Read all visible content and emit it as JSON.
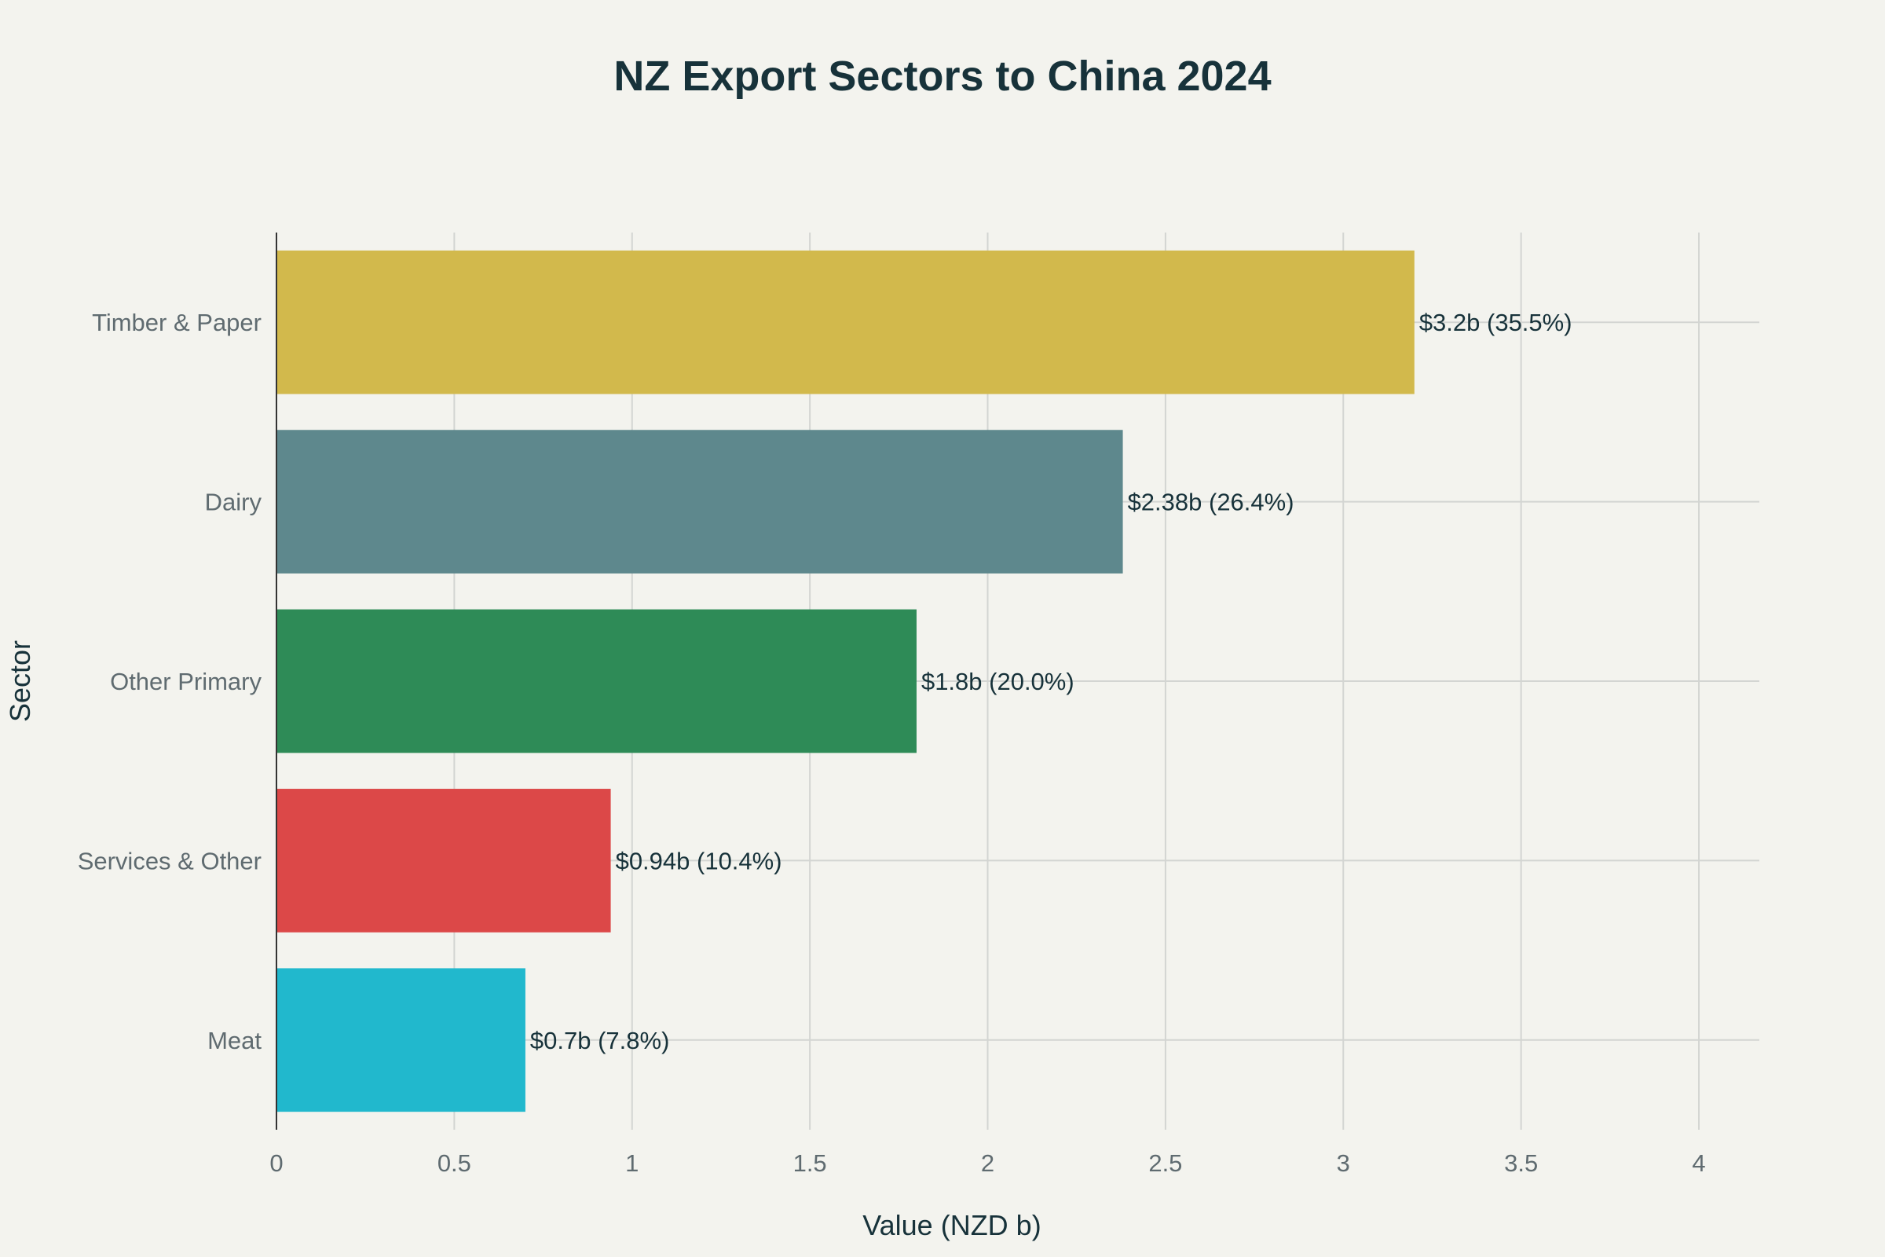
{
  "chart_data": {
    "type": "bar",
    "orientation": "horizontal",
    "title": "NZ Export Sectors to China 2024",
    "xlabel": "Value (NZD b)",
    "ylabel": "Sector",
    "categories": [
      "Timber & Paper",
      "Dairy",
      "Other Primary",
      "Services & Other",
      "Meat"
    ],
    "values": [
      3.2,
      2.38,
      1.8,
      0.94,
      0.7
    ],
    "data_labels": [
      "$3.2b (35.5%)",
      "$2.38b (26.4%)",
      "$1.8b (20.0%)",
      "$0.94b (10.4%)",
      "$0.7b (7.8%)"
    ],
    "colors": [
      "#d2b94c",
      "#5e888d",
      "#2e8b57",
      "#dc4848",
      "#21b8cd"
    ],
    "xlim": [
      0,
      4.17
    ],
    "xticks": [
      0,
      0.5,
      1,
      1.5,
      2,
      2.5,
      3,
      3.5,
      4
    ],
    "xtick_labels": [
      "0",
      "0.5",
      "1",
      "1.5",
      "2",
      "2.5",
      "3",
      "3.5",
      "4"
    ],
    "grid": true,
    "legend": "none"
  }
}
